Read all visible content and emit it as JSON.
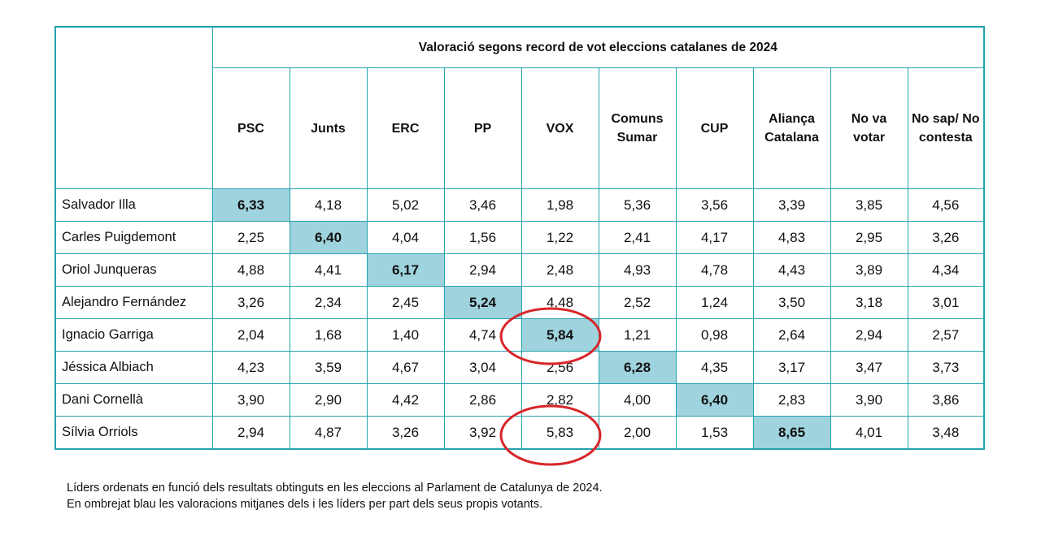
{
  "chart_data": {
    "type": "table",
    "title": "Valoració segons record de vot eleccions catalanes de 2024",
    "columns": [
      "PSC",
      "Junts",
      "ERC",
      "PP",
      "VOX",
      "Comuns Sumar",
      "CUP",
      "Aliança Catalana",
      "No va votar",
      "No sap/ No contesta"
    ],
    "rows": [
      {
        "leader": "Salvador Illa",
        "values": [
          "6,33",
          "4,18",
          "5,02",
          "3,46",
          "1,98",
          "5,36",
          "3,56",
          "3,39",
          "3,85",
          "4,56"
        ],
        "highlight_col": 0
      },
      {
        "leader": "Carles Puigdemont",
        "values": [
          "2,25",
          "6,40",
          "4,04",
          "1,56",
          "1,22",
          "2,41",
          "4,17",
          "4,83",
          "2,95",
          "3,26"
        ],
        "highlight_col": 1
      },
      {
        "leader": "Oriol Junqueras",
        "values": [
          "4,88",
          "4,41",
          "6,17",
          "2,94",
          "2,48",
          "4,93",
          "4,78",
          "4,43",
          "3,89",
          "4,34"
        ],
        "highlight_col": 2
      },
      {
        "leader": "Alejandro Fernández",
        "values": [
          "3,26",
          "2,34",
          "2,45",
          "5,24",
          "4,48",
          "2,52",
          "1,24",
          "3,50",
          "3,18",
          "3,01"
        ],
        "highlight_col": 3
      },
      {
        "leader": "Ignacio Garriga",
        "values": [
          "2,04",
          "1,68",
          "1,40",
          "4,74",
          "5,84",
          "1,21",
          "0,98",
          "2,64",
          "2,94",
          "2,57"
        ],
        "highlight_col": 4
      },
      {
        "leader": "Jéssica Albiach",
        "values": [
          "4,23",
          "3,59",
          "4,67",
          "3,04",
          "2,56",
          "6,28",
          "4,35",
          "3,17",
          "3,47",
          "3,73"
        ],
        "highlight_col": 5
      },
      {
        "leader": "Dani Cornellà",
        "values": [
          "3,90",
          "2,90",
          "4,42",
          "2,86",
          "2,82",
          "4,00",
          "6,40",
          "2,83",
          "3,90",
          "3,86"
        ],
        "highlight_col": 6
      },
      {
        "leader": "Sílvia Orriols",
        "values": [
          "2,94",
          "4,87",
          "3,26",
          "3,92",
          "5,83",
          "2,00",
          "1,53",
          "8,65",
          "4,01",
          "3,48"
        ],
        "highlight_col": 7
      }
    ],
    "circled_cells": [
      {
        "row": 4,
        "col": 4,
        "value": "5,84"
      },
      {
        "row": 7,
        "col": 4,
        "value": "5,83"
      }
    ]
  },
  "notes": [
    "Líders ordenats en funció dels resultats obtinguts en les eleccions al Parlament de Catalunya de 2024.",
    "En ombrejat blau les valoracions mitjanes dels i les líders per part dels seus propis votants."
  ],
  "colors": {
    "border": "#24a2ad",
    "highlight": "#9fd3de",
    "circle": "#d8262b"
  }
}
